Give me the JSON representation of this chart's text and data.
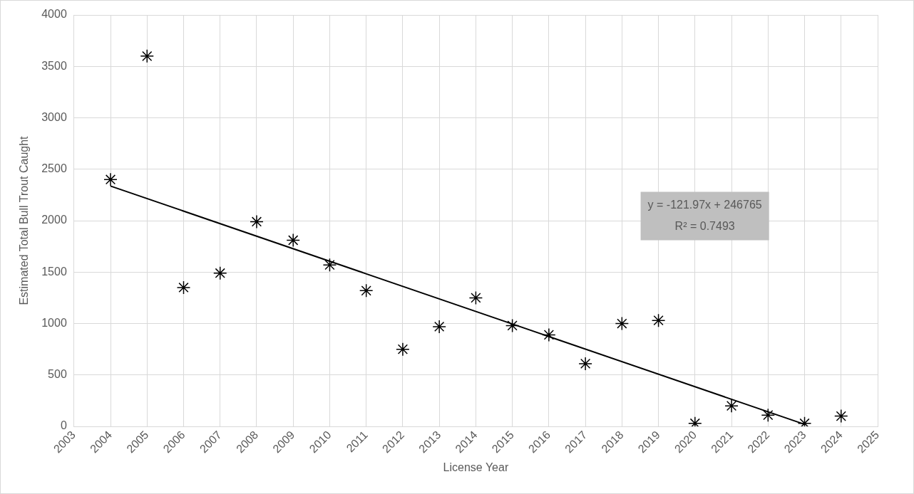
{
  "chart_data": {
    "type": "scatter",
    "xlabel": "License Year",
    "ylabel": "Estimated Total Bull Trout Caught",
    "x": [
      2004,
      2005,
      2006,
      2007,
      2008,
      2009,
      2010,
      2011,
      2012,
      2013,
      2014,
      2015,
      2016,
      2017,
      2018,
      2019,
      2020,
      2021,
      2022,
      2023,
      2024
    ],
    "series": [
      {
        "type": "scatter",
        "color": "#000000",
        "marker": "cross",
        "values": [
          2400,
          3600,
          1350,
          1490,
          1990,
          1810,
          1570,
          1320,
          750,
          970,
          1250,
          980,
          890,
          610,
          1000,
          1030,
          30,
          200,
          110,
          30,
          100
        ]
      },
      {
        "type": "line",
        "color": "#000000",
        "line_style": "solid",
        "marker": "none",
        "x": [
          2004,
          2023
        ],
        "values": [
          2337,
          20
        ]
      }
    ],
    "xlim": [
      2003,
      2025
    ],
    "xticks": [
      2003,
      2004,
      2005,
      2006,
      2007,
      2008,
      2009,
      2010,
      2011,
      2012,
      2013,
      2014,
      2015,
      2016,
      2017,
      2018,
      2019,
      2020,
      2021,
      2022,
      2023,
      2024,
      2025
    ],
    "ylim": [
      0,
      4000
    ],
    "yticks": [
      0,
      500,
      1000,
      1500,
      2000,
      2500,
      3000,
      3500,
      4000
    ],
    "grid": true,
    "legend": false,
    "annotations": [
      "y = -121.97x + 246765",
      "R² = 0.7493"
    ]
  }
}
